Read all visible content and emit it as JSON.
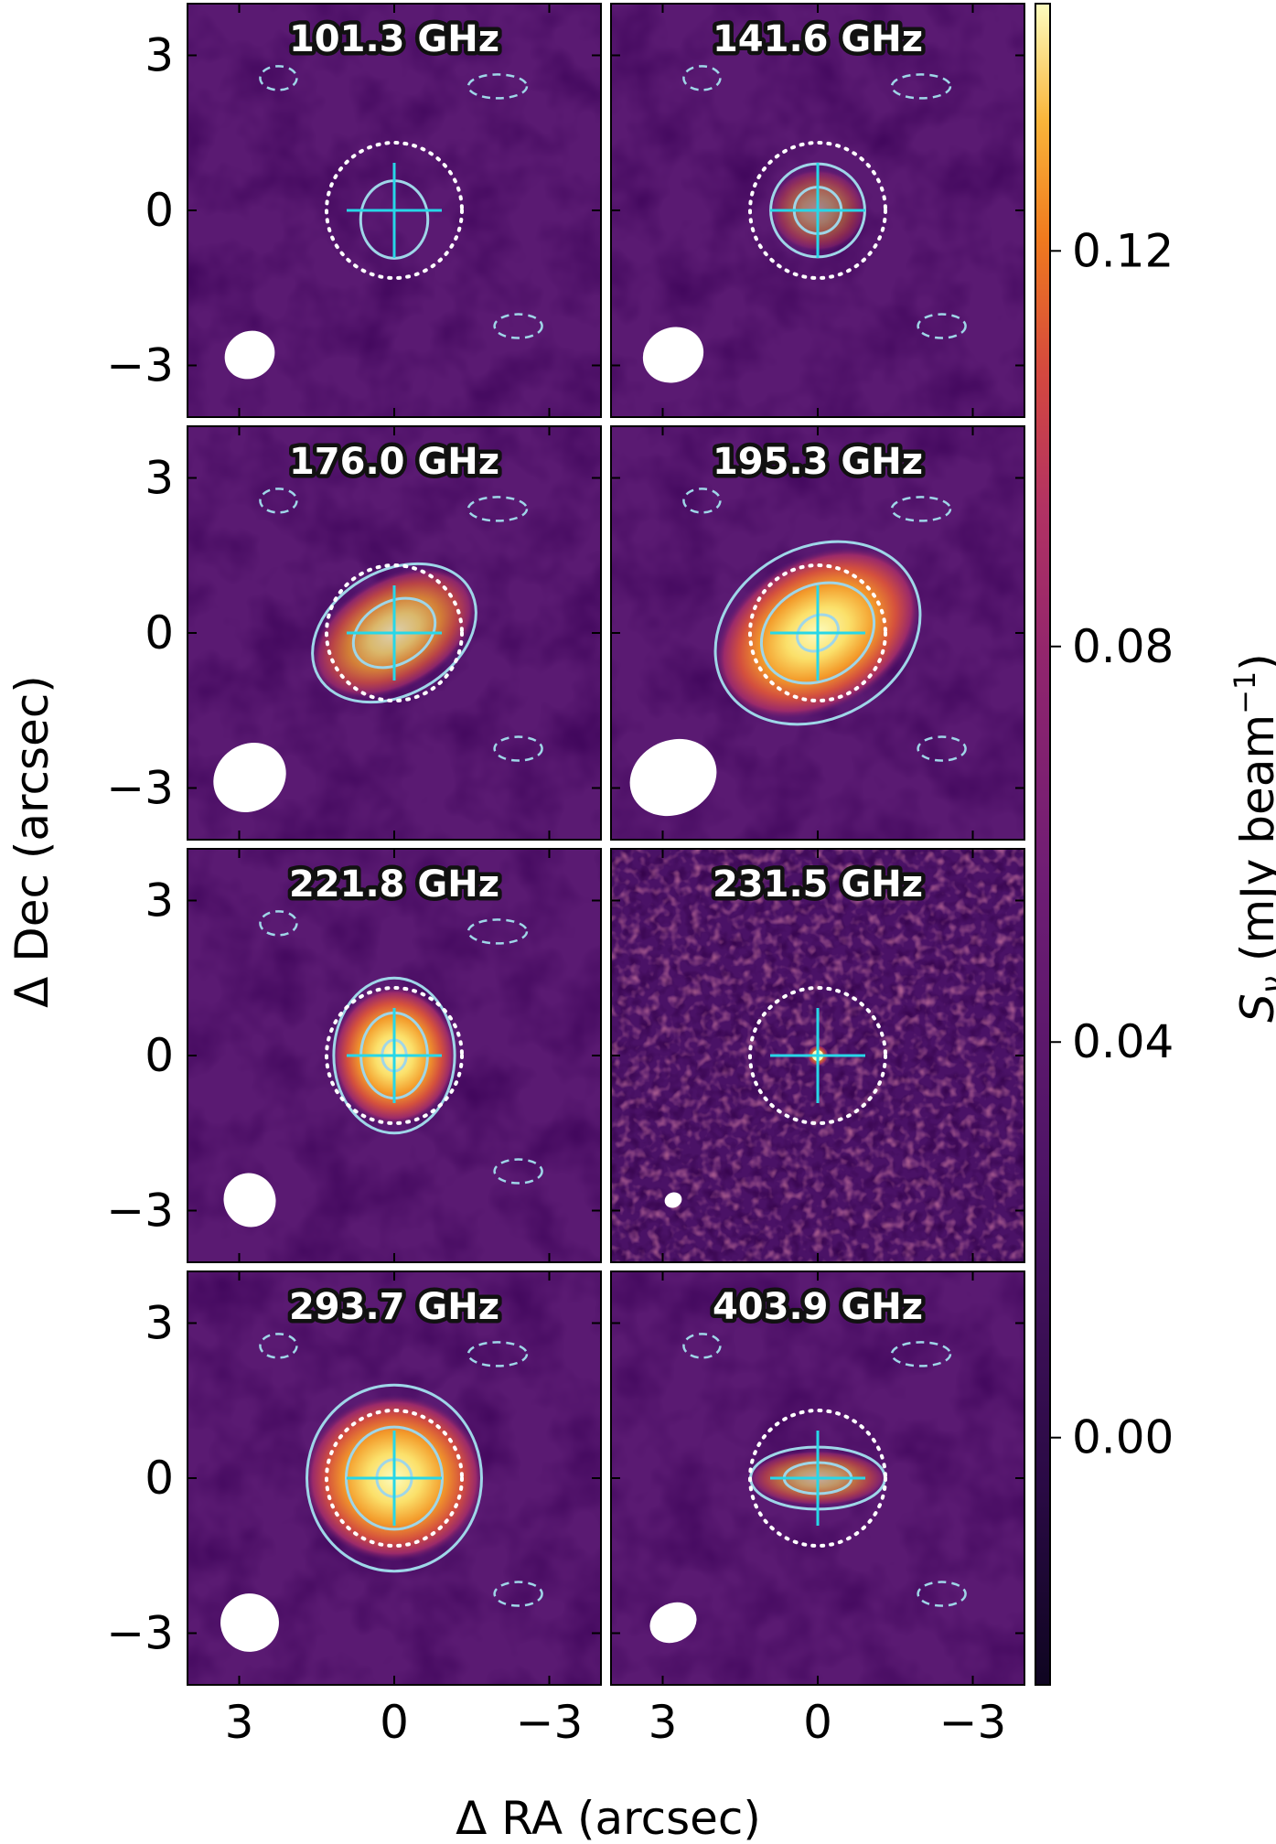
{
  "figure": {
    "xlabel": "Δ RA (arcsec)",
    "ylabel": "Δ Dec (arcsec)",
    "x_ticks": [
      "3",
      "0",
      "−3"
    ],
    "y_ticks": [
      "3",
      "0",
      "−3"
    ],
    "colorbar": {
      "label_main": "S",
      "label_sub": "ν",
      "label_unit_open": " (mJy beam",
      "label_unit_sup": "−1",
      "label_unit_close": ")",
      "ticks": [
        "0.00",
        "0.04",
        "0.08",
        "0.12"
      ],
      "tick_values": [
        0.0,
        0.04,
        0.08,
        0.12
      ],
      "range": [
        -0.025,
        0.145
      ],
      "colormap": "inferno-magma",
      "colors": [
        "#12061f",
        "#3b0f59",
        "#6b1d7a",
        "#a02b70",
        "#d14a42",
        "#f58220",
        "#fbc33a",
        "#fcfdbf"
      ]
    },
    "contour_color": "#9fd6e8",
    "marker_color": "#27d7e8",
    "panels": [
      {
        "label": "101.3 GHz",
        "freq_ghz": 101.3,
        "peak_level": 0.15,
        "source_extent_arcsec": [
          0.5,
          0.5
        ],
        "beam_arcsec": [
          1.3,
          1.0
        ]
      },
      {
        "label": "141.6 GHz",
        "freq_ghz": 141.6,
        "peak_level": 0.45,
        "source_extent_arcsec": [
          0.7,
          0.6
        ],
        "beam_arcsec": [
          1.6,
          1.2
        ]
      },
      {
        "label": "176.0 GHz",
        "freq_ghz": 176.0,
        "peak_level": 0.75,
        "source_extent_arcsec": [
          1.3,
          0.8
        ],
        "beam_arcsec": [
          2.0,
          1.5
        ]
      },
      {
        "label": "195.3 GHz",
        "freq_ghz": 195.3,
        "peak_level": 1.0,
        "source_extent_arcsec": [
          1.6,
          1.1
        ],
        "beam_arcsec": [
          2.4,
          1.7
        ]
      },
      {
        "label": "221.8 GHz",
        "freq_ghz": 221.8,
        "peak_level": 1.0,
        "source_extent_arcsec": [
          0.9,
          1.0
        ],
        "beam_arcsec": [
          1.3,
          1.2
        ]
      },
      {
        "label": "231.5 GHz",
        "freq_ghz": 231.5,
        "peak_level": 0.7,
        "source_extent_arcsec": [
          0.15,
          0.15
        ],
        "beam_arcsec": [
          0.3,
          0.2
        ]
      },
      {
        "label": "293.7 GHz",
        "freq_ghz": 293.7,
        "peak_level": 1.0,
        "source_extent_arcsec": [
          1.3,
          1.2
        ],
        "beam_arcsec": [
          1.5,
          1.3
        ]
      },
      {
        "label": "403.9 GHz",
        "freq_ghz": 403.9,
        "peak_level": 0.6,
        "source_extent_arcsec": [
          1.0,
          0.4
        ],
        "beam_arcsec": [
          1.2,
          0.8
        ]
      }
    ]
  }
}
